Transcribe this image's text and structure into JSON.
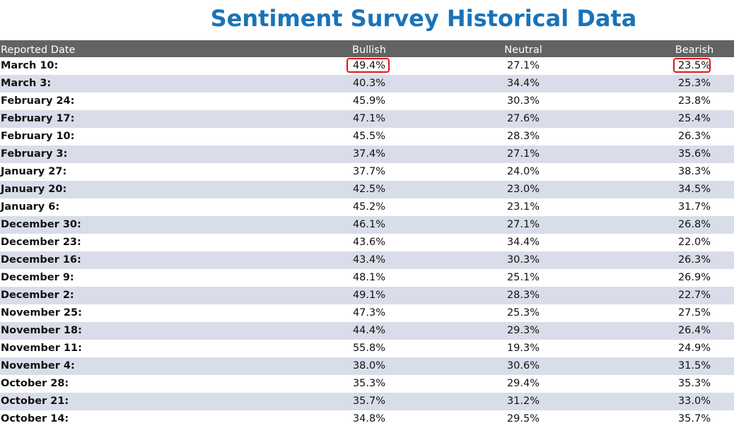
{
  "title": "Sentiment Survey Historical Data",
  "colors": {
    "title": "#1a73b8",
    "header_bg": "#636363",
    "alt_row_bg": "#d8dde9",
    "highlight_border": "#e3131b"
  },
  "table": {
    "headers": {
      "date": "Reported Date",
      "bullish": "Bullish",
      "neutral": "Neutral",
      "bearish": "Bearish"
    },
    "rows": [
      {
        "date": "March 10:",
        "bullish": "49.4%",
        "neutral": "27.1%",
        "bearish": "23.5%",
        "highlighted": [
          "bullish",
          "bearish"
        ]
      },
      {
        "date": "March 3:",
        "bullish": "40.3%",
        "neutral": "34.4%",
        "bearish": "25.3%"
      },
      {
        "date": "February 24:",
        "bullish": "45.9%",
        "neutral": "30.3%",
        "bearish": "23.8%"
      },
      {
        "date": "February 17:",
        "bullish": "47.1%",
        "neutral": "27.6%",
        "bearish": "25.4%"
      },
      {
        "date": "February 10:",
        "bullish": "45.5%",
        "neutral": "28.3%",
        "bearish": "26.3%"
      },
      {
        "date": "February 3:",
        "bullish": "37.4%",
        "neutral": "27.1%",
        "bearish": "35.6%"
      },
      {
        "date": "January 27:",
        "bullish": "37.7%",
        "neutral": "24.0%",
        "bearish": "38.3%"
      },
      {
        "date": "January 20:",
        "bullish": "42.5%",
        "neutral": "23.0%",
        "bearish": "34.5%"
      },
      {
        "date": "January 6:",
        "bullish": "45.2%",
        "neutral": "23.1%",
        "bearish": "31.7%"
      },
      {
        "date": "December 30:",
        "bullish": "46.1%",
        "neutral": "27.1%",
        "bearish": "26.8%"
      },
      {
        "date": "December 23:",
        "bullish": "43.6%",
        "neutral": "34.4%",
        "bearish": "22.0%"
      },
      {
        "date": "December 16:",
        "bullish": "43.4%",
        "neutral": "30.3%",
        "bearish": "26.3%"
      },
      {
        "date": "December 9:",
        "bullish": "48.1%",
        "neutral": "25.1%",
        "bearish": "26.9%"
      },
      {
        "date": "December 2:",
        "bullish": "49.1%",
        "neutral": "28.3%",
        "bearish": "22.7%"
      },
      {
        "date": "November 25:",
        "bullish": "47.3%",
        "neutral": "25.3%",
        "bearish": "27.5%"
      },
      {
        "date": "November 18:",
        "bullish": "44.4%",
        "neutral": "29.3%",
        "bearish": "26.4%"
      },
      {
        "date": "November 11:",
        "bullish": "55.8%",
        "neutral": "19.3%",
        "bearish": "24.9%"
      },
      {
        "date": "November 4:",
        "bullish": "38.0%",
        "neutral": "30.6%",
        "bearish": "31.5%"
      },
      {
        "date": "October 28:",
        "bullish": "35.3%",
        "neutral": "29.4%",
        "bearish": "35.3%"
      },
      {
        "date": "October 21:",
        "bullish": "35.7%",
        "neutral": "31.2%",
        "bearish": "33.0%"
      },
      {
        "date": "October 14:",
        "bullish": "34.8%",
        "neutral": "29.5%",
        "bearish": "35.7%"
      }
    ]
  }
}
